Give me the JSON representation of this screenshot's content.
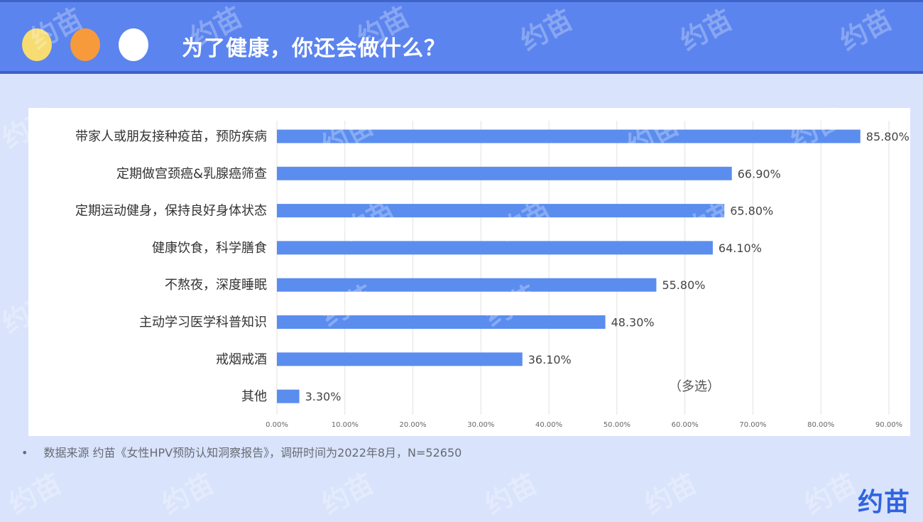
{
  "header": {
    "title": "为了健康，你还会做什么？",
    "dots": [
      {
        "name": "yellow-dot",
        "color": "#f7dc71"
      },
      {
        "name": "orange-dot",
        "color": "#f79a3c"
      },
      {
        "name": "white-dot",
        "color": "#ffffff"
      }
    ],
    "header_color": "#5b84ee"
  },
  "watermark": {
    "text": "约苗"
  },
  "chart_data": {
    "type": "bar",
    "orientation": "horizontal",
    "categories": [
      "带家人或朋友接种疫苗，预防疾病",
      "定期做宫颈癌&乳腺癌筛查",
      "定期运动健身，保持良好身体状态",
      "健康饮食，科学膳食",
      "不熬夜，深度睡眠",
      "主动学习医学科普知识",
      "戒烟戒酒",
      "其他"
    ],
    "values": [
      85.8,
      66.9,
      65.8,
      64.1,
      55.8,
      48.3,
      36.1,
      3.3
    ],
    "value_labels": [
      "85.80%",
      "66.90%",
      "65.80%",
      "64.10%",
      "55.80%",
      "48.30%",
      "36.10%",
      "3.30%"
    ],
    "x_ticks": [
      "0.00%",
      "10.00%",
      "20.00%",
      "30.00%",
      "40.00%",
      "50.00%",
      "60.00%",
      "70.00%",
      "80.00%",
      "90.00%"
    ],
    "xlim": [
      0,
      90
    ],
    "grid": true,
    "annotation": "（多选）",
    "bar_color": "#5b8def"
  },
  "footer": {
    "bullet": "•",
    "source_text": "数据来源 约苗《女性HPV预防认知洞察报告》，调研时间为2022年8月，N=52650",
    "logo_text": "约苗"
  }
}
